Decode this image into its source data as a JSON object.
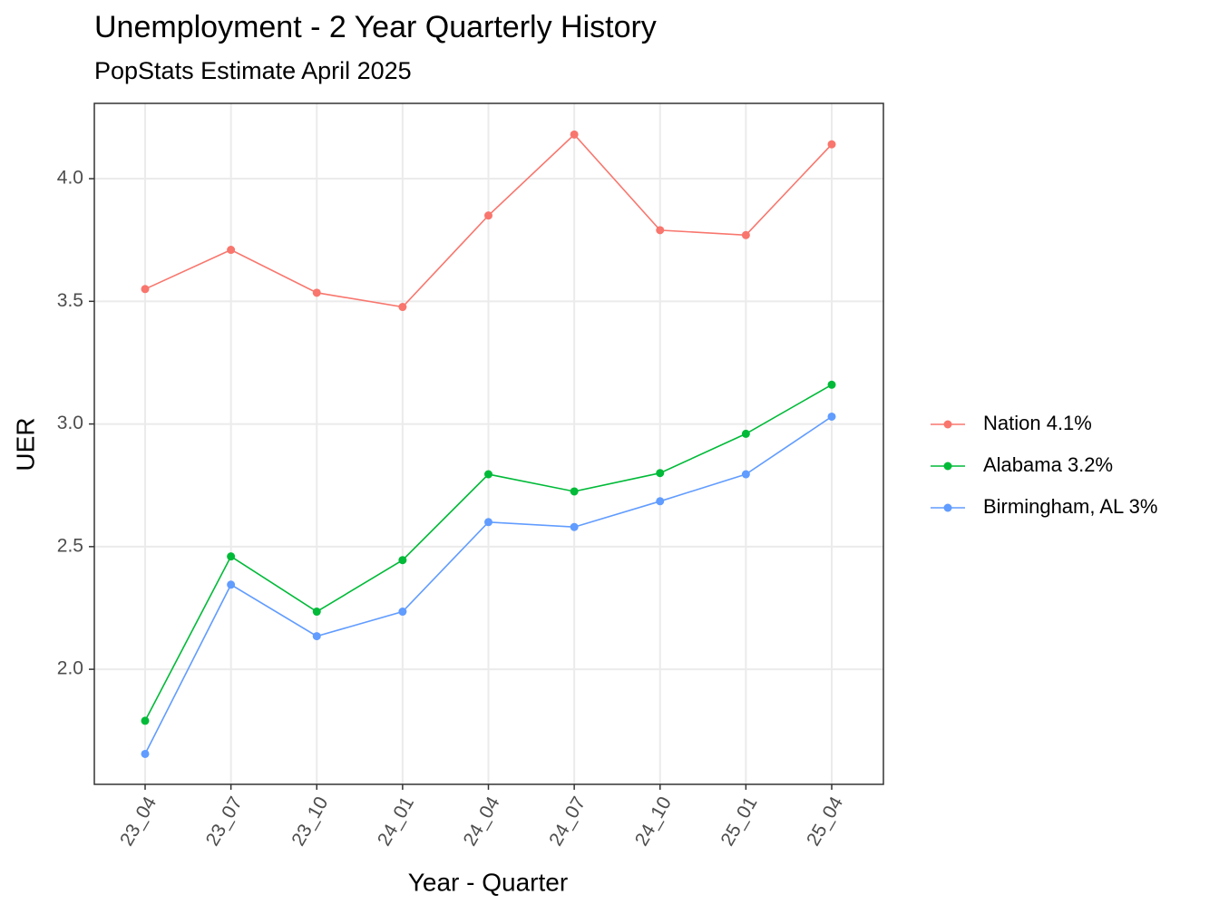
{
  "chart_data": {
    "type": "line",
    "title": "Unemployment - 2 Year Quarterly History",
    "subtitle": "PopStats Estimate April 2025",
    "x_label": "Year - Quarter",
    "y_label": "UER",
    "categories": [
      "23_04",
      "23_07",
      "23_10",
      "24_01",
      "24_04",
      "24_07",
      "24_10",
      "25_01",
      "25_04"
    ],
    "series": [
      {
        "name": "Nation 4.1%",
        "color": "#F8766D",
        "values": [
          3.55,
          3.71,
          3.535,
          3.477,
          3.85,
          4.18,
          3.79,
          3.77,
          4.14
        ]
      },
      {
        "name": "Alabama 3.2%",
        "color": "#00BA38",
        "values": [
          1.79,
          2.46,
          2.235,
          2.445,
          2.795,
          2.725,
          2.8,
          2.96,
          3.16
        ]
      },
      {
        "name": "Birmingham, AL 3%",
        "color": "#619CFF",
        "values": [
          1.655,
          2.345,
          2.135,
          2.235,
          2.6,
          2.58,
          2.685,
          2.795,
          3.03
        ]
      }
    ],
    "ylim": [
      1.531,
      4.307
    ],
    "yticks": [
      {
        "value": 2,
        "label": "2.0"
      },
      2.5,
      {
        "value": 3,
        "label": "3.0"
      },
      3.5,
      {
        "value": 4,
        "label": "4.0"
      }
    ],
    "grid": true,
    "legend_position": "right"
  }
}
